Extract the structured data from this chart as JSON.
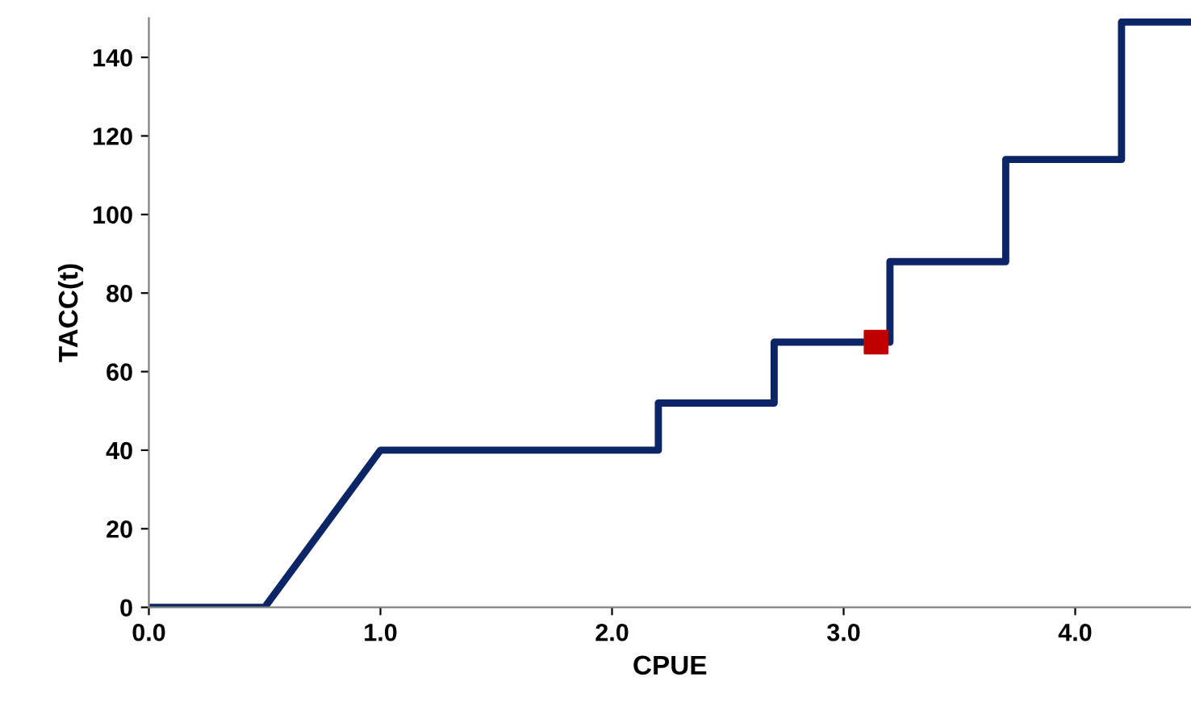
{
  "chart_data": {
    "type": "line",
    "xlabel": "CPUE",
    "ylabel": "TACC(t)",
    "xlim": [
      0,
      4.5
    ],
    "ylim": [
      0,
      150
    ],
    "xticks": [
      {
        "value": 0,
        "label": "0.0"
      },
      {
        "value": 1,
        "label": "1.0"
      },
      {
        "value": 2,
        "label": "2.0"
      },
      {
        "value": 3,
        "label": "3.0"
      },
      {
        "value": 4,
        "label": "4.0"
      }
    ],
    "yticks": [
      0,
      20,
      40,
      60,
      80,
      100,
      120,
      140
    ],
    "grid": false,
    "legend": false,
    "series": [
      {
        "color": "#0b2566",
        "marker": "none",
        "line_style": "solid",
        "x": [
          0,
          0.5,
          1.0,
          2.2,
          2.2,
          2.7,
          2.7,
          3.2,
          3.2,
          3.7,
          3.7,
          4.2,
          4.2,
          4.5
        ],
        "values": [
          0,
          0,
          40,
          40,
          52,
          52,
          67.5,
          67.5,
          88,
          88,
          114,
          114,
          149,
          149
        ]
      },
      {
        "type": "scatter",
        "color": "#c00000",
        "marker": "square",
        "x": [
          3.14
        ],
        "values": [
          67.5
        ]
      }
    ]
  }
}
